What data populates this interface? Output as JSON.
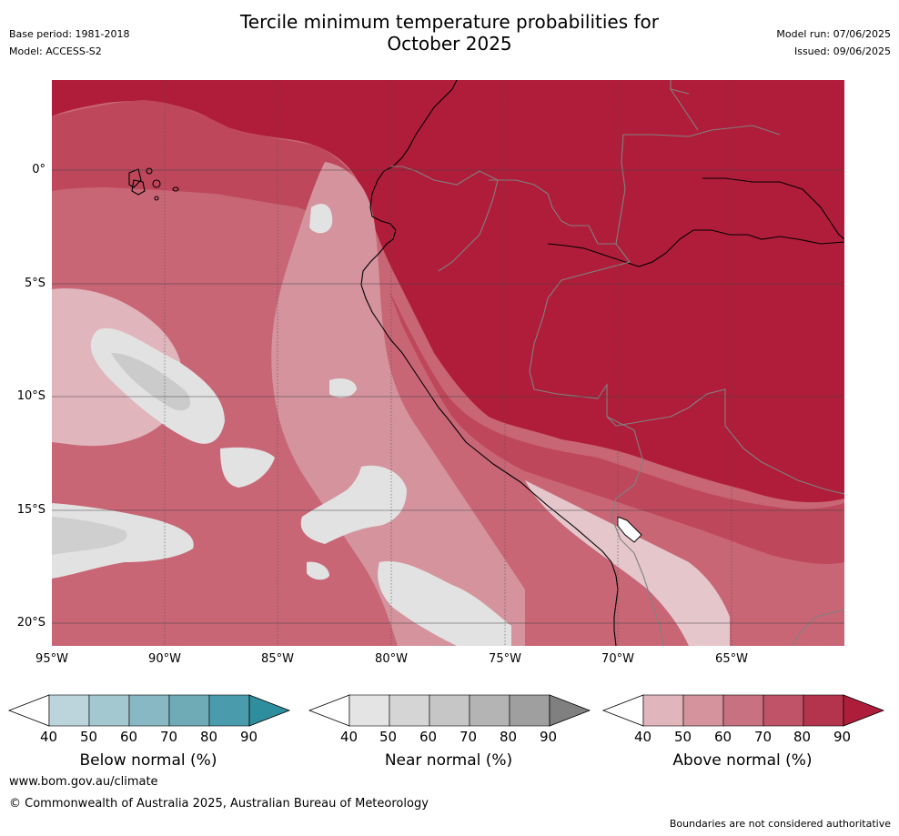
{
  "title_line1": "Tercile minimum temperature probabilities for",
  "title_line2": "October 2025",
  "meta_left": {
    "base_period": "Base period: 1981-2018",
    "model": "Model: ACCESS-S2"
  },
  "meta_right": {
    "model_run": "Model run: 07/06/2025",
    "issued": "Issued: 09/06/2025"
  },
  "lat_labels": [
    "0°",
    "5°S",
    "10°S",
    "15°S",
    "20°S"
  ],
  "lon_labels": [
    "95°W",
    "90°W",
    "85°W",
    "80°W",
    "75°W",
    "70°W",
    "65°W"
  ],
  "colorbars": [
    {
      "title": "Below normal (%)",
      "ticks": [
        "40",
        "50",
        "60",
        "70",
        "80",
        "90"
      ],
      "colors": [
        "#bcd5dc",
        "#a4c8cf",
        "#88b8c3",
        "#6eabb7",
        "#4a9cac",
        "#2f8e9e"
      ]
    },
    {
      "title": "Near normal (%)",
      "ticks": [
        "40",
        "50",
        "60",
        "70",
        "80",
        "90"
      ],
      "colors": [
        "#e4e4e4",
        "#d5d5d5",
        "#c6c6c6",
        "#b4b4b4",
        "#9f9f9f",
        "#808080"
      ]
    },
    {
      "title": "Above normal (%)",
      "ticks": [
        "40",
        "50",
        "60",
        "70",
        "80",
        "90"
      ],
      "colors": [
        "#e0b5bc",
        "#d4939d",
        "#c87180",
        "#c05367",
        "#b5344d",
        "#ae1e3a"
      ]
    }
  ],
  "footer": {
    "url": "www.bom.gov.au/climate",
    "copyright": "© Commonwealth of Australia 2025, Australian Bureau of Meteorology",
    "note": "Boundaries are not considered authoritative"
  }
}
